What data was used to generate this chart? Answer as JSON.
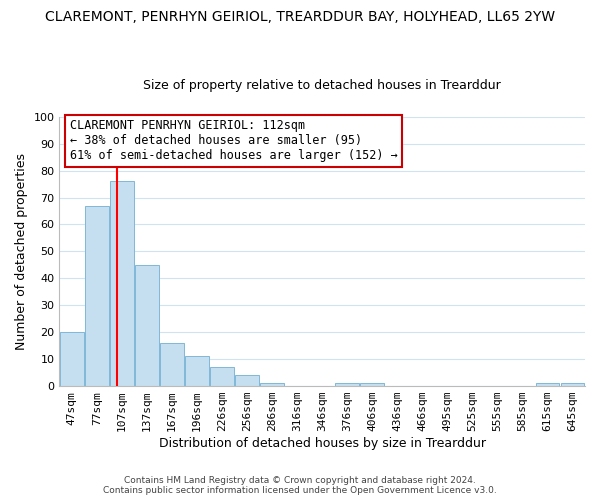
{
  "title": "CLAREMONT, PENRHYN GEIRIOL, TREARDDUR BAY, HOLYHEAD, LL65 2YW",
  "subtitle": "Size of property relative to detached houses in Trearddur",
  "xlabel": "Distribution of detached houses by size in Trearddur",
  "ylabel": "Number of detached properties",
  "footnote1": "Contains HM Land Registry data © Crown copyright and database right 2024.",
  "footnote2": "Contains public sector information licensed under the Open Government Licence v3.0.",
  "bar_labels": [
    "47sqm",
    "77sqm",
    "107sqm",
    "137sqm",
    "167sqm",
    "196sqm",
    "226sqm",
    "256sqm",
    "286sqm",
    "316sqm",
    "346sqm",
    "376sqm",
    "406sqm",
    "436sqm",
    "466sqm",
    "495sqm",
    "525sqm",
    "555sqm",
    "585sqm",
    "615sqm",
    "645sqm"
  ],
  "bar_values": [
    20,
    67,
    76,
    45,
    16,
    11,
    7,
    4,
    1,
    0,
    0,
    1,
    1,
    0,
    0,
    0,
    0,
    0,
    0,
    1,
    1
  ],
  "bar_color": "#c5dff0",
  "bar_edge_color": "#7fb8d8",
  "grid_color": "#d0e4f0",
  "ylim": [
    0,
    100
  ],
  "yticks": [
    0,
    10,
    20,
    30,
    40,
    50,
    60,
    70,
    80,
    90,
    100
  ],
  "vline_x_index": 1.82,
  "vline_color": "red",
  "annotation_title": "CLAREMONT PENRHYN GEIRIOL: 112sqm",
  "annotation_line1": "← 38% of detached houses are smaller (95)",
  "annotation_line2": "61% of semi-detached houses are larger (152) →",
  "annotation_box_color": "#ffffff",
  "annotation_box_edge": "#cc0000",
  "title_fontsize": 10,
  "subtitle_fontsize": 9,
  "axis_label_fontsize": 9,
  "tick_fontsize": 8,
  "annotation_fontsize": 8.5
}
